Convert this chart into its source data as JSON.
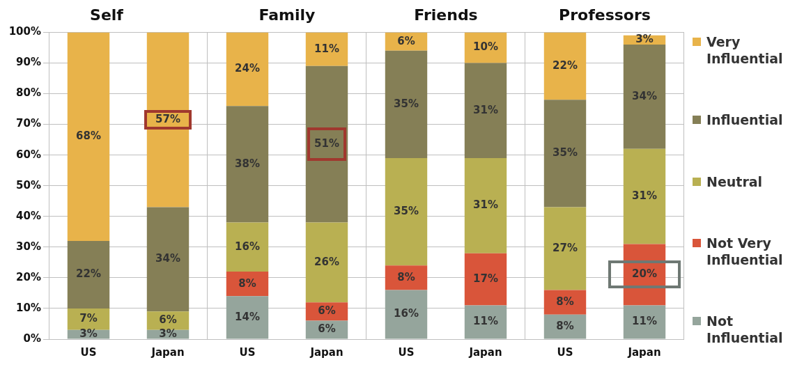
{
  "chart_data": [
    {
      "type": "bar",
      "title": "Self",
      "stacked": true,
      "categories": [
        "US",
        "Japan"
      ],
      "ylim": [
        0,
        100
      ],
      "yticks": [
        {
          "value": 0,
          "label": "0%"
        },
        {
          "value": 10,
          "label": "10%"
        },
        {
          "value": 20,
          "label": "20%"
        },
        {
          "value": 30,
          "label": "30%"
        },
        {
          "value": 40,
          "label": "40%"
        },
        {
          "value": 50,
          "label": "50%"
        },
        {
          "value": 60,
          "label": "60%"
        },
        {
          "value": 70,
          "label": "70%"
        },
        {
          "value": 80,
          "label": "80%"
        },
        {
          "value": 90,
          "label": "90%"
        },
        {
          "value": 100,
          "label": "100%"
        }
      ],
      "grid": "y",
      "legend": false,
      "series": [
        {
          "color": "#95a59c",
          "values": [
            3,
            3
          ],
          "value_labels": [
            "3%",
            "3%"
          ]
        },
        {
          "color": "#d9553a",
          "values": [
            null,
            null
          ],
          "value_labels": [
            null,
            null
          ]
        },
        {
          "color": "#b9b052",
          "values": [
            7,
            6
          ],
          "value_labels": [
            "7%",
            "6%"
          ]
        },
        {
          "color": "#857f56",
          "values": [
            22,
            34
          ],
          "value_labels": [
            "22%",
            "34%"
          ]
        },
        {
          "color": "#e8b34a",
          "values": [
            68,
            57
          ],
          "value_labels": [
            "68%",
            "57%"
          ]
        }
      ]
    },
    {
      "type": "bar",
      "title": "Family",
      "stacked": true,
      "categories": [
        "US",
        "Japan"
      ],
      "ylim": [
        0,
        100
      ],
      "yticks": [
        0,
        10,
        20,
        30,
        40,
        50,
        60,
        70,
        80,
        90,
        100
      ],
      "grid": "y",
      "legend": false,
      "tick_labels": "x",
      "series": [
        {
          "color": "#95a59c",
          "values": [
            14,
            6
          ],
          "value_labels": [
            "14%",
            "6%"
          ]
        },
        {
          "color": "#d9553a",
          "values": [
            8,
            6
          ],
          "value_labels": [
            "8%",
            "6%"
          ]
        },
        {
          "color": "#b9b052",
          "values": [
            16,
            26
          ],
          "value_labels": [
            "16%",
            "26%"
          ]
        },
        {
          "color": "#857f56",
          "values": [
            38,
            51
          ],
          "value_labels": [
            "38%",
            "51%"
          ]
        },
        {
          "color": "#e8b34a",
          "values": [
            24,
            11
          ],
          "value_labels": [
            "24%",
            "11%"
          ]
        }
      ]
    },
    {
      "type": "bar",
      "title": "Friends",
      "stacked": true,
      "categories": [
        "US",
        "Japan"
      ],
      "ylim": [
        0,
        100
      ],
      "yticks": [
        0,
        10,
        20,
        30,
        40,
        50,
        60,
        70,
        80,
        90,
        100
      ],
      "grid": "y",
      "legend": false,
      "tick_labels": "x",
      "series": [
        {
          "color": "#95a59c",
          "values": [
            16,
            11
          ],
          "value_labels": [
            "16%",
            "11%"
          ]
        },
        {
          "color": "#d9553a",
          "values": [
            8,
            17
          ],
          "value_labels": [
            "8%",
            "17%"
          ]
        },
        {
          "color": "#b9b052",
          "values": [
            35,
            31
          ],
          "value_labels": [
            "35%",
            "31%"
          ]
        },
        {
          "color": "#857f56",
          "values": [
            35,
            31
          ],
          "value_labels": [
            "35%",
            "31%"
          ]
        },
        {
          "color": "#e8b34a",
          "values": [
            6,
            10
          ],
          "value_labels": [
            "6%",
            "10%"
          ]
        }
      ]
    },
    {
      "type": "bar",
      "title": "Professors",
      "stacked": true,
      "categories": [
        "US",
        "Japan"
      ],
      "ylim": [
        0,
        100
      ],
      "yticks": [
        0,
        10,
        20,
        30,
        40,
        50,
        60,
        70,
        80,
        90,
        100
      ],
      "grid": "y",
      "legend": "right",
      "tick_labels": "x",
      "series": [
        {
          "name": "Not Influential",
          "color": "#95a59c",
          "values": [
            8,
            11
          ],
          "value_labels": [
            "8%",
            "11%"
          ]
        },
        {
          "name": "Not Very Influential",
          "color": "#d9553a",
          "values": [
            8,
            20
          ],
          "value_labels": [
            "8%",
            "20%"
          ]
        },
        {
          "name": "Neutral",
          "color": "#b9b052",
          "values": [
            27,
            31
          ],
          "value_labels": [
            "27%",
            "31%"
          ]
        },
        {
          "name": "Influential",
          "color": "#857f56",
          "values": [
            35,
            34
          ],
          "value_labels": [
            "35%",
            "34%"
          ]
        },
        {
          "name": "Very Influential",
          "color": "#e8b34a",
          "values": [
            22,
            3
          ],
          "value_labels": [
            "22%",
            "3%"
          ]
        }
      ]
    }
  ]
}
